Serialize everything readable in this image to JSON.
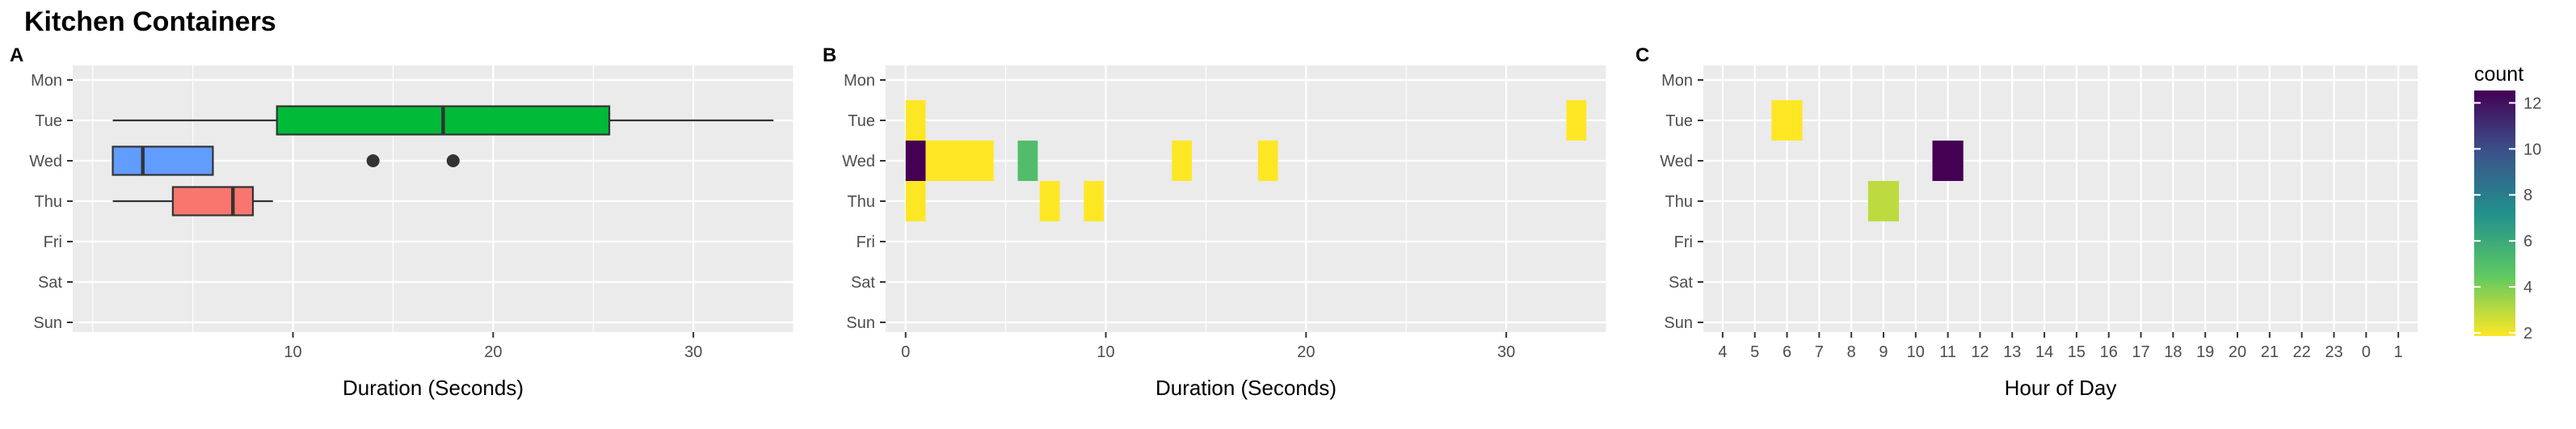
{
  "title": "Kitchen Containers",
  "days": [
    "Mon",
    "Tue",
    "Wed",
    "Thu",
    "Fri",
    "Sat",
    "Sun"
  ],
  "legend": {
    "title": "count",
    "ticks": [
      "2",
      "4",
      "6",
      "8",
      "10",
      "12"
    ],
    "ramp": [
      "#FDE725",
      "#5DC863",
      "#21908C",
      "#3B528B",
      "#440154"
    ]
  },
  "chart_data": [
    {
      "panel": "A",
      "type": "boxplot",
      "xlabel": "Duration (Seconds)",
      "xlim": [
        -1,
        35
      ],
      "xticks": [
        10,
        20,
        30
      ],
      "grid": true,
      "boxes": [
        {
          "day": "Tue",
          "color": "#00BA38",
          "whisker_low": 1,
          "q1": 9.2,
          "median": 17.5,
          "q3": 25.8,
          "whisker_high": 34,
          "outliers": []
        },
        {
          "day": "Wed",
          "color": "#619CFF",
          "whisker_low": 1,
          "q1": 1,
          "median": 2.5,
          "q3": 6,
          "whisker_high": 6,
          "outliers": [
            14,
            18
          ]
        },
        {
          "day": "Thu",
          "color": "#F8766D",
          "whisker_low": 1,
          "q1": 4,
          "median": 7,
          "q3": 8,
          "whisker_high": 9,
          "outliers": []
        }
      ]
    },
    {
      "panel": "B",
      "type": "heatmap",
      "xlabel": "Duration (Seconds)",
      "xlim": [
        -1,
        35
      ],
      "xticks": [
        0,
        10,
        20,
        30
      ],
      "color_scale": "viridis-reversed",
      "cells": [
        {
          "day": "Tue",
          "x0": 0,
          "x1": 1,
          "count": 2
        },
        {
          "day": "Tue",
          "x0": 33,
          "x1": 34,
          "count": 2
        },
        {
          "day": "Wed",
          "x0": 0,
          "x1": 1,
          "count": 12
        },
        {
          "day": "Wed",
          "x0": 1,
          "x1": 4.4,
          "count": 2
        },
        {
          "day": "Wed",
          "x0": 5.6,
          "x1": 6.6,
          "count": 5
        },
        {
          "day": "Wed",
          "x0": 13.3,
          "x1": 14.3,
          "count": 2
        },
        {
          "day": "Wed",
          "x0": 17.6,
          "x1": 18.6,
          "count": 2
        },
        {
          "day": "Thu",
          "x0": 0,
          "x1": 1,
          "count": 2
        },
        {
          "day": "Thu",
          "x0": 6.7,
          "x1": 7.7,
          "count": 2
        },
        {
          "day": "Thu",
          "x0": 8.9,
          "x1": 9.9,
          "count": 2
        }
      ]
    },
    {
      "panel": "C",
      "type": "heatmap",
      "xlabel": "Hour of Day",
      "categories": [
        "4",
        "5",
        "6",
        "7",
        "8",
        "9",
        "10",
        "11",
        "12",
        "13",
        "14",
        "15",
        "16",
        "17",
        "18",
        "19",
        "20",
        "21",
        "22",
        "23",
        "0",
        "1"
      ],
      "color_scale": "viridis-reversed",
      "cells": [
        {
          "day": "Tue",
          "hour": "6",
          "count": 2
        },
        {
          "day": "Wed",
          "hour": "11",
          "count": 12
        },
        {
          "day": "Thu",
          "hour": "9",
          "count": 3
        }
      ]
    }
  ]
}
